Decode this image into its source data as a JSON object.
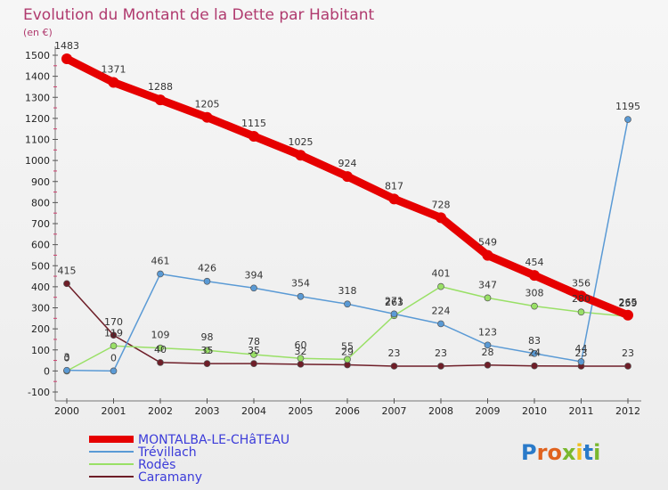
{
  "chart_data": {
    "type": "line",
    "title": "Evolution du Montant de la Dette par Habitant",
    "subtitle": "(en €)",
    "x": [
      2000,
      2001,
      2002,
      2003,
      2004,
      2005,
      2006,
      2007,
      2008,
      2009,
      2010,
      2011,
      2012
    ],
    "ylim": [
      -100,
      1500
    ],
    "yticks": [
      -100,
      0,
      100,
      200,
      300,
      400,
      500,
      600,
      700,
      800,
      900,
      1000,
      1100,
      1200,
      1300,
      1400,
      1500
    ],
    "grid": false,
    "legend_position": "bottom-left",
    "series": [
      {
        "name": "MONTALBA-LE-CHâTEAU",
        "color": "#e60000",
        "values": [
          1483,
          1371,
          1288,
          1205,
          1115,
          1025,
          924,
          817,
          728,
          549,
          454,
          356,
          265
        ]
      },
      {
        "name": "Trévillach",
        "color": "#5a9ad5",
        "values": [
          3,
          0,
          461,
          426,
          394,
          354,
          318,
          271,
          224,
          123,
          83,
          44,
          1195
        ]
      },
      {
        "name": "Rodès",
        "color": "#99e066",
        "values": [
          0,
          119,
          109,
          98,
          78,
          60,
          55,
          263,
          401,
          347,
          308,
          280,
          259
        ]
      },
      {
        "name": "Caramany",
        "color": "#6e1e28",
        "values": [
          415,
          170,
          40,
          35,
          35,
          32,
          29,
          23,
          23,
          28,
          24,
          23,
          23
        ]
      }
    ],
    "logo": {
      "letters": [
        "P",
        "r",
        "o",
        "x",
        "i",
        "t",
        "i"
      ],
      "colors": [
        "#2a7ac9",
        "#e0621e",
        "#e0621e",
        "#7ab82e",
        "#f0c020",
        "#2a7ac9",
        "#7ab82e"
      ]
    }
  }
}
